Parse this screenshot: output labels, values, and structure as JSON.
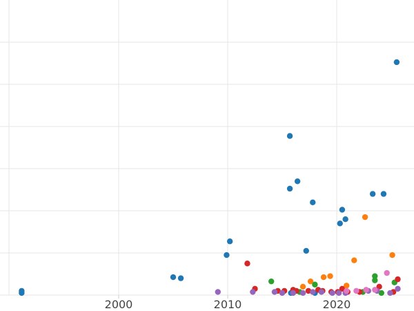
{
  "chart_data": {
    "type": "scatter",
    "title": "",
    "xlabel": "",
    "ylabel": "",
    "grid": true,
    "legend": "none",
    "xlim": [
      1990,
      2027
    ],
    "ylim": [
      0,
      28
    ],
    "x_ticks": [
      2000,
      2010,
      2020
    ],
    "x_tick_labels": [
      "2000",
      "2010",
      "2020"
    ],
    "y_gridlines": [
      0,
      4,
      8,
      12,
      16,
      20,
      24
    ],
    "series": [
      {
        "color": "#1f77b4",
        "points": [
          {
            "x": 1991.1,
            "y": 0.4
          },
          {
            "x": 1991.1,
            "y": 0.2
          },
          {
            "x": 2005.0,
            "y": 1.7
          },
          {
            "x": 2005.7,
            "y": 1.6
          },
          {
            "x": 2009.9,
            "y": 3.8
          },
          {
            "x": 2010.2,
            "y": 5.1
          },
          {
            "x": 2015.7,
            "y": 15.1
          },
          {
            "x": 2015.7,
            "y": 10.1
          },
          {
            "x": 2016.4,
            "y": 10.8
          },
          {
            "x": 2017.2,
            "y": 4.2
          },
          {
            "x": 2017.8,
            "y": 8.8
          },
          {
            "x": 2020.3,
            "y": 6.8
          },
          {
            "x": 2020.5,
            "y": 8.1
          },
          {
            "x": 2020.8,
            "y": 7.2
          },
          {
            "x": 2023.3,
            "y": 9.6
          },
          {
            "x": 2024.3,
            "y": 9.6
          },
          {
            "x": 2025.5,
            "y": 22.1
          },
          {
            "x": 2015.8,
            "y": 0.2
          },
          {
            "x": 2018.0,
            "y": 0.2
          }
        ]
      },
      {
        "color": "#ff7f0e",
        "points": [
          {
            "x": 2016.9,
            "y": 0.8
          },
          {
            "x": 2017.6,
            "y": 1.3
          },
          {
            "x": 2018.8,
            "y": 1.7
          },
          {
            "x": 2019.4,
            "y": 1.8
          },
          {
            "x": 2020.9,
            "y": 0.9
          },
          {
            "x": 2021.6,
            "y": 3.3
          },
          {
            "x": 2022.6,
            "y": 7.4
          },
          {
            "x": 2025.1,
            "y": 3.8
          }
        ]
      },
      {
        "color": "#2ca02c",
        "points": [
          {
            "x": 2014.0,
            "y": 1.3
          },
          {
            "x": 2016.6,
            "y": 0.3
          },
          {
            "x": 2018.0,
            "y": 1.0
          },
          {
            "x": 2022.4,
            "y": 0.3
          },
          {
            "x": 2023.5,
            "y": 1.8
          },
          {
            "x": 2023.5,
            "y": 1.4
          },
          {
            "x": 2024.1,
            "y": 0.2
          },
          {
            "x": 2025.3,
            "y": 1.2
          }
        ]
      },
      {
        "color": "#d62728",
        "points": [
          {
            "x": 2011.8,
            "y": 3.0
          },
          {
            "x": 2012.5,
            "y": 0.6
          },
          {
            "x": 2014.6,
            "y": 0.4
          },
          {
            "x": 2015.2,
            "y": 0.4
          },
          {
            "x": 2016.0,
            "y": 0.5
          },
          {
            "x": 2016.3,
            "y": 0.4
          },
          {
            "x": 2017.4,
            "y": 0.4
          },
          {
            "x": 2018.3,
            "y": 0.5
          },
          {
            "x": 2018.7,
            "y": 0.4
          },
          {
            "x": 2019.5,
            "y": 0.3
          },
          {
            "x": 2020.1,
            "y": 0.3
          },
          {
            "x": 2020.5,
            "y": 0.6
          },
          {
            "x": 2021.0,
            "y": 0.3
          },
          {
            "x": 2022.1,
            "y": 0.3
          },
          {
            "x": 2023.9,
            "y": 0.8
          },
          {
            "x": 2025.2,
            "y": 0.3
          },
          {
            "x": 2025.6,
            "y": 1.5
          }
        ]
      },
      {
        "color": "#9467bd",
        "points": [
          {
            "x": 2009.1,
            "y": 0.3
          },
          {
            "x": 2012.3,
            "y": 0.3
          },
          {
            "x": 2014.3,
            "y": 0.3
          },
          {
            "x": 2015.0,
            "y": 0.2
          },
          {
            "x": 2016.0,
            "y": 0.2
          },
          {
            "x": 2016.9,
            "y": 0.2
          },
          {
            "x": 2017.8,
            "y": 0.3
          },
          {
            "x": 2018.6,
            "y": 0.3
          },
          {
            "x": 2019.6,
            "y": 0.2
          },
          {
            "x": 2020.2,
            "y": 0.2
          },
          {
            "x": 2020.8,
            "y": 0.2
          },
          {
            "x": 2022.9,
            "y": 0.4
          },
          {
            "x": 2023.7,
            "y": 0.4
          },
          {
            "x": 2024.9,
            "y": 0.2
          },
          {
            "x": 2025.6,
            "y": 0.6
          }
        ]
      },
      {
        "color": "#e377c2",
        "points": [
          {
            "x": 2020.9,
            "y": 0.4
          },
          {
            "x": 2021.8,
            "y": 0.4
          },
          {
            "x": 2022.7,
            "y": 0.5
          },
          {
            "x": 2023.5,
            "y": 0.5
          },
          {
            "x": 2024.6,
            "y": 2.1
          }
        ]
      }
    ]
  }
}
